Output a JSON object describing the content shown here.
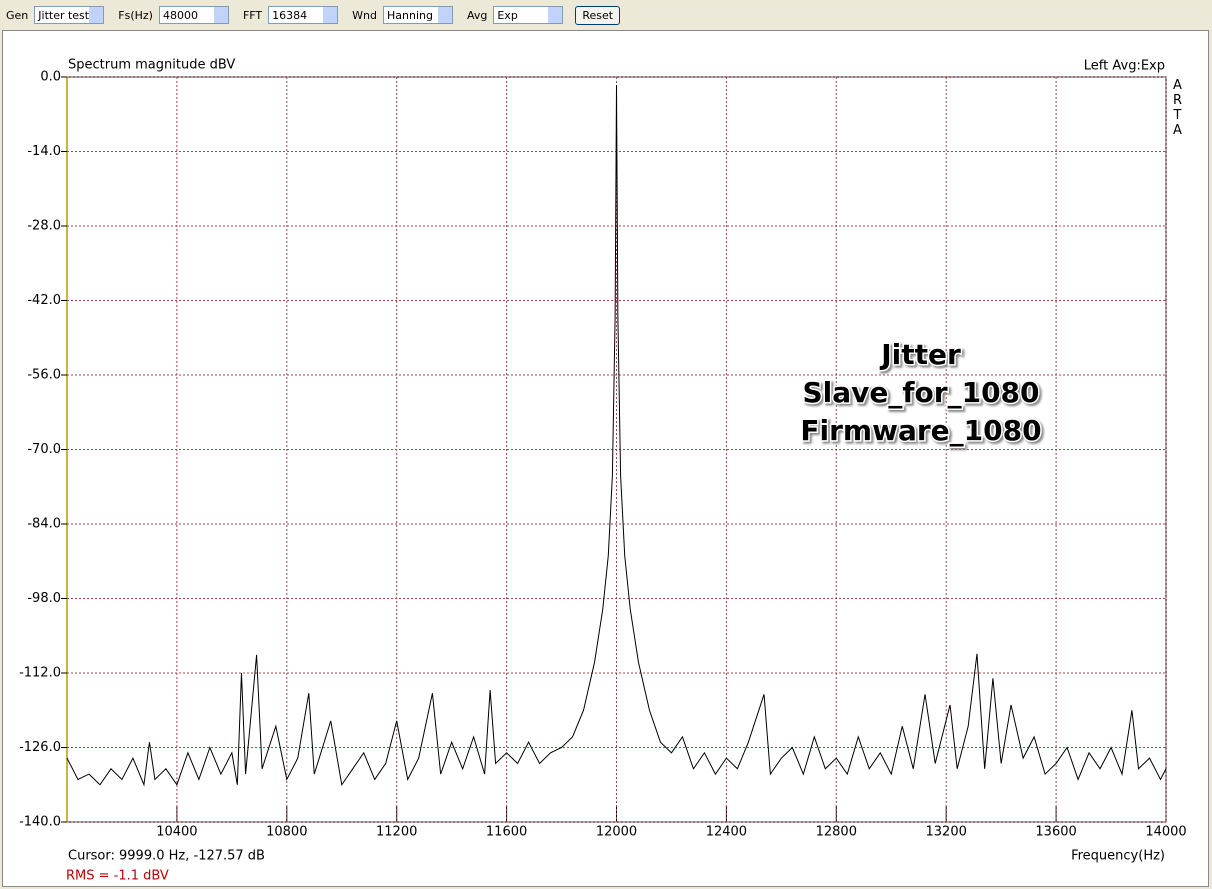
{
  "toolbar": {
    "items": [
      {
        "label": "Gen",
        "value": "Jitter test"
      },
      {
        "label": "Fs(Hz)",
        "value": "48000"
      },
      {
        "label": "FFT",
        "value": "16384"
      },
      {
        "label": "Wnd",
        "value": "Hanning"
      },
      {
        "label": "Avg",
        "value": "Exp"
      }
    ],
    "button": "Reset"
  },
  "chart_data": {
    "type": "line",
    "title": "Spectrum magnitude dBV",
    "status": "Left  Avg:Exp",
    "brand": "ARTA",
    "x_label": "Frequency(Hz)",
    "cursor": "Cursor:  9999.0 Hz, -127.57 dB",
    "rms": "RMS =  -1.1 dBV",
    "annotations": [
      "Jitter",
      "Slave_for_1080",
      "Firmware_1080"
    ],
    "xlim": [
      10000,
      14000
    ],
    "xticks": [
      10400,
      10800,
      11200,
      11600,
      12000,
      12400,
      12800,
      13200,
      13600,
      14000
    ],
    "ylim": [
      -140,
      0
    ],
    "yticks": [
      {
        "value": 0,
        "label": "0.0"
      },
      {
        "value": -14,
        "label": "-14.0"
      },
      {
        "value": -28,
        "label": "-28.0"
      },
      {
        "value": -42,
        "label": "-42.0"
      },
      {
        "value": -56,
        "label": "-56.0"
      },
      {
        "value": -70,
        "label": "-70.0"
      },
      {
        "value": -84,
        "label": "-84.0"
      },
      {
        "value": -98,
        "label": "-98.0"
      },
      {
        "value": -112,
        "label": "-112.0"
      },
      {
        "value": -126,
        "label": "-126.0"
      },
      {
        "value": -140,
        "label": "-140.0"
      }
    ],
    "grid": true,
    "grid_color": "#a04848",
    "color": "#000000",
    "x": [
      10000,
      10040,
      10080,
      10120,
      10160,
      10200,
      10240,
      10280,
      10300,
      10320,
      10360,
      10400,
      10440,
      10480,
      10520,
      10560,
      10600,
      10620,
      10635,
      10650,
      10690,
      10710,
      10760,
      10800,
      10840,
      10880,
      10900,
      10960,
      11000,
      11040,
      11080,
      11120,
      11160,
      11200,
      11240,
      11280,
      11330,
      11360,
      11400,
      11440,
      11480,
      11520,
      11540,
      11560,
      11600,
      11640,
      11680,
      11720,
      11760,
      11800,
      11840,
      11880,
      11920,
      11950,
      11970,
      11985,
      11995,
      12000,
      12005,
      12015,
      12030,
      12050,
      12080,
      12120,
      12160,
      12200,
      12240,
      12280,
      12320,
      12360,
      12400,
      12440,
      12480,
      12537,
      12560,
      12600,
      12640,
      12680,
      12720,
      12760,
      12800,
      12840,
      12880,
      12920,
      12960,
      13000,
      13040,
      13080,
      13123,
      13160,
      13214,
      13240,
      13280,
      13312,
      13340,
      13370,
      13400,
      13436,
      13480,
      13520,
      13560,
      13600,
      13640,
      13680,
      13720,
      13760,
      13800,
      13840,
      13876,
      13900,
      13940,
      13980,
      14000
    ],
    "values": [
      -128,
      -132,
      -131,
      -133,
      -130,
      -132,
      -128,
      -133,
      -125,
      -132,
      -130,
      -133,
      -127,
      -132,
      -126,
      -131,
      -127,
      -133,
      -112,
      -131,
      -108.6,
      -130,
      -122,
      -132,
      -128,
      -115.8,
      -131,
      -121,
      -133,
      -130,
      -127,
      -132,
      -129,
      -121,
      -132,
      -128,
      -115.8,
      -131,
      -125,
      -130,
      -124,
      -131,
      -115.2,
      -129,
      -127,
      -129,
      -125,
      -129,
      -127,
      -126,
      -124,
      -119,
      -110,
      -100,
      -90,
      -75,
      -45,
      -1.5,
      -45,
      -75,
      -90,
      -100,
      -110,
      -119,
      -125,
      -127,
      -124,
      -130,
      -127,
      -131,
      -128,
      -130,
      -125,
      -116,
      -131,
      -128,
      -126,
      -131,
      -124,
      -130,
      -128,
      -131,
      -124,
      -130,
      -127,
      -131,
      -122,
      -130,
      -116,
      -129,
      -118,
      -130,
      -122,
      -108.4,
      -130,
      -113,
      -129,
      -118,
      -128,
      -124,
      -131,
      -129,
      -126,
      -132,
      -127,
      -130,
      -126,
      -131,
      -119,
      -130,
      -128,
      -132,
      -130
    ]
  }
}
